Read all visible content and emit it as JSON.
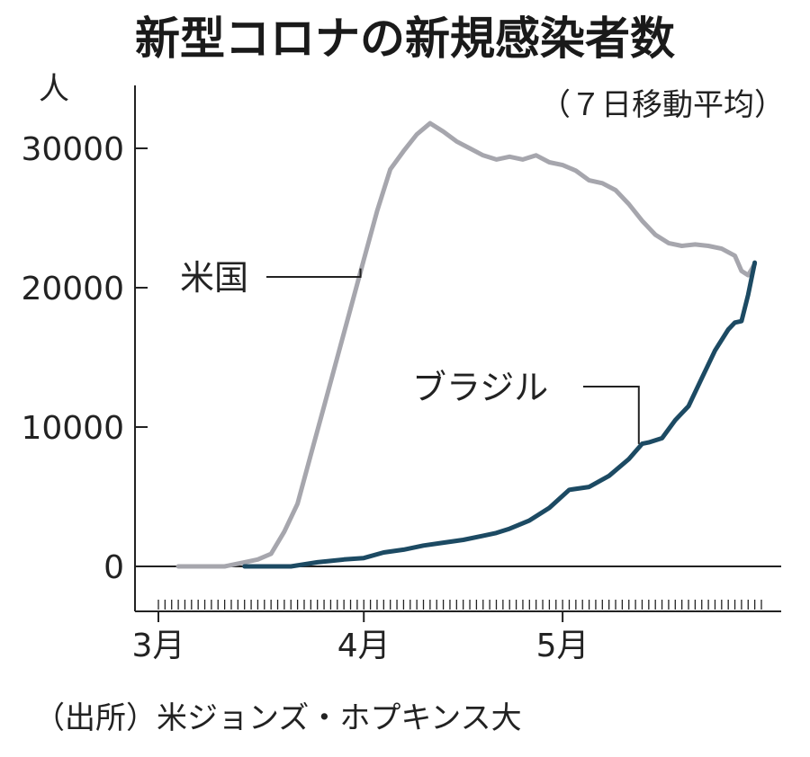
{
  "chart_data": {
    "type": "line",
    "title": "新型コロナの新規感染者数",
    "subtitle": "（７日移動平均）",
    "ylabel": "人",
    "source": "（出所）米ジョンズ・ホプキンス大",
    "ylim": [
      -1500,
      34000
    ],
    "yticks": [
      0,
      10000,
      20000,
      30000
    ],
    "ytick_labels": [
      "0",
      "10000",
      "20000",
      "30000"
    ],
    "x_range_days": [
      0,
      91
    ],
    "xticks": [
      {
        "day": 0,
        "label": "3月"
      },
      {
        "day": 31,
        "label": "4月"
      },
      {
        "day": 61,
        "label": "5月"
      }
    ],
    "colors": {
      "us": "#a6a6ad",
      "brazil": "#1c4a63",
      "axis": "#222222"
    },
    "series": [
      {
        "name": "米国",
        "key": "us",
        "points": [
          [
            3,
            0
          ],
          [
            10,
            0
          ],
          [
            13,
            300
          ],
          [
            15,
            500
          ],
          [
            17,
            900
          ],
          [
            19,
            2500
          ],
          [
            21,
            4500
          ],
          [
            23,
            8000
          ],
          [
            25,
            11500
          ],
          [
            27,
            15000
          ],
          [
            29,
            18500
          ],
          [
            31,
            22000
          ],
          [
            33,
            25500
          ],
          [
            35,
            28500
          ],
          [
            37,
            29800
          ],
          [
            39,
            31000
          ],
          [
            41,
            31800
          ],
          [
            43,
            31200
          ],
          [
            45,
            30500
          ],
          [
            47,
            30000
          ],
          [
            49,
            29500
          ],
          [
            51,
            29200
          ],
          [
            53,
            29400
          ],
          [
            55,
            29200
          ],
          [
            57,
            29500
          ],
          [
            59,
            29000
          ],
          [
            61,
            28800
          ],
          [
            63,
            28400
          ],
          [
            65,
            27700
          ],
          [
            67,
            27500
          ],
          [
            69,
            27000
          ],
          [
            71,
            26000
          ],
          [
            73,
            24800
          ],
          [
            75,
            23800
          ],
          [
            77,
            23200
          ],
          [
            79,
            23000
          ],
          [
            81,
            23100
          ],
          [
            83,
            23000
          ],
          [
            85,
            22800
          ],
          [
            87,
            22300
          ],
          [
            88,
            21200
          ],
          [
            89,
            20900
          ],
          [
            90,
            21700
          ]
        ]
      },
      {
        "name": "ブラジル",
        "key": "brazil",
        "points": [
          [
            13,
            0
          ],
          [
            20,
            0
          ],
          [
            24,
            300
          ],
          [
            28,
            500
          ],
          [
            31,
            600
          ],
          [
            34,
            1000
          ],
          [
            37,
            1200
          ],
          [
            40,
            1500
          ],
          [
            43,
            1700
          ],
          [
            46,
            1900
          ],
          [
            49,
            2200
          ],
          [
            51,
            2400
          ],
          [
            53,
            2700
          ],
          [
            56,
            3300
          ],
          [
            59,
            4200
          ],
          [
            62,
            5500
          ],
          [
            65,
            5700
          ],
          [
            68,
            6500
          ],
          [
            71,
            7700
          ],
          [
            73,
            8800
          ],
          [
            74,
            8900
          ],
          [
            76,
            9200
          ],
          [
            78,
            10500
          ],
          [
            80,
            11500
          ],
          [
            82,
            13500
          ],
          [
            84,
            15500
          ],
          [
            86,
            17000
          ],
          [
            87,
            17500
          ],
          [
            88,
            17600
          ],
          [
            89,
            19500
          ],
          [
            90,
            21800
          ]
        ]
      }
    ]
  }
}
